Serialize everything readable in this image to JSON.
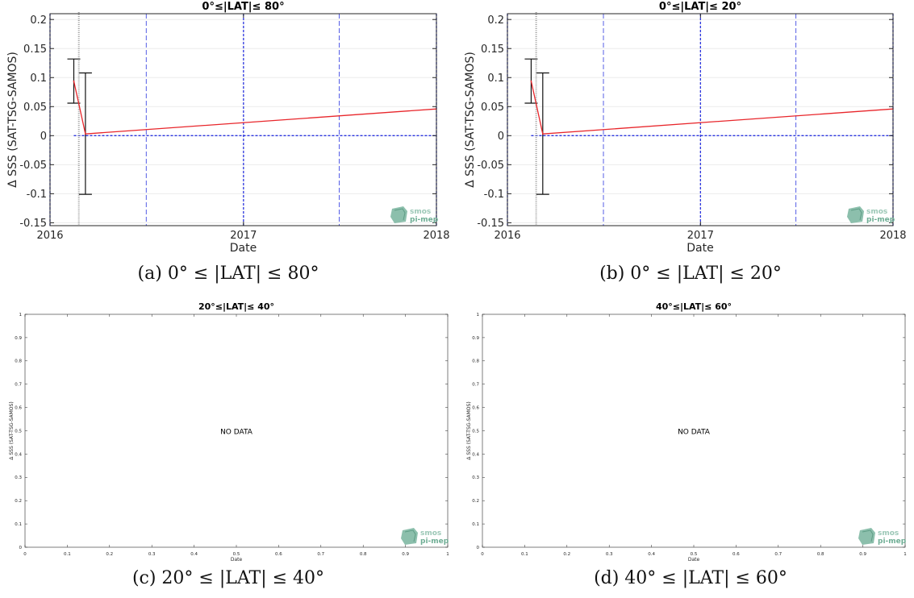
{
  "chart_data": [
    {
      "type": "line",
      "title": "0°≤|LAT|≤ 80°",
      "caption": "(a) 0° ≤ |LAT| ≤ 80°",
      "xlabel": "Date",
      "ylabel": "Δ SSS (SAT-TSG-SAMOS)",
      "x_ticks": [
        "2016",
        "2017",
        "2018"
      ],
      "y_ticks": [
        "-0.15",
        "-0.1",
        "-0.05",
        "0",
        "0.05",
        "0.1",
        "0.15",
        "0.2"
      ],
      "xlim": [
        "2016-01-01",
        "2018-01-01"
      ],
      "ylim": [
        -0.155,
        0.21
      ],
      "grid": true,
      "series": [
        {
          "color": "#e8262b",
          "x": [
            "2016-02-15",
            "2016-03-08",
            "2018-01-01"
          ],
          "y": [
            0.094,
            0.003,
            0.046
          ]
        }
      ],
      "error_bars": [
        {
          "x": "2016-02-15",
          "low": 0.056,
          "high": 0.132
        },
        {
          "x": "2016-03-08",
          "low": -0.101,
          "high": 0.108
        }
      ],
      "reference_lines": [
        {
          "orientation": "horizontal",
          "y": 0,
          "color": "#2b35e0"
        },
        {
          "orientation": "vertical",
          "x": "2016-01-01",
          "color": "#2b35e0"
        },
        {
          "orientation": "vertical",
          "x": "2016-07-01",
          "color": "#2b35e0"
        },
        {
          "orientation": "vertical",
          "x": "2017-01-01",
          "color": "#2b35e0"
        },
        {
          "orientation": "vertical",
          "x": "2017-07-01",
          "color": "#2b35e0"
        },
        {
          "orientation": "vertical",
          "x": "2018-01-01",
          "color": "#2b35e0"
        }
      ],
      "logo": {
        "line1": "smos",
        "line2": "pi-mep"
      }
    },
    {
      "type": "line",
      "title": "0°≤|LAT|≤ 20°",
      "caption": "(b) 0° ≤ |LAT| ≤ 20°",
      "xlabel": "Date",
      "ylabel": "Δ SSS (SAT-TSG-SAMOS)",
      "x_ticks": [
        "2016",
        "2017",
        "2018"
      ],
      "y_ticks": [
        "-0.15",
        "-0.1",
        "-0.05",
        "0",
        "0.05",
        "0.1",
        "0.15",
        "0.2"
      ],
      "xlim": [
        "2016-01-01",
        "2018-01-01"
      ],
      "ylim": [
        -0.155,
        0.21
      ],
      "grid": true,
      "series": [
        {
          "color": "#e8262b",
          "x": [
            "2016-02-15",
            "2016-03-08",
            "2018-01-01"
          ],
          "y": [
            0.094,
            0.003,
            0.046
          ]
        }
      ],
      "error_bars": [
        {
          "x": "2016-02-15",
          "low": 0.056,
          "high": 0.132
        },
        {
          "x": "2016-03-08",
          "low": -0.101,
          "high": 0.108
        }
      ],
      "reference_lines": [
        {
          "orientation": "horizontal",
          "y": 0,
          "color": "#2b35e0"
        },
        {
          "orientation": "vertical",
          "x": "2016-01-01",
          "color": "#2b35e0"
        },
        {
          "orientation": "vertical",
          "x": "2016-07-01",
          "color": "#2b35e0"
        },
        {
          "orientation": "vertical",
          "x": "2017-01-01",
          "color": "#2b35e0"
        },
        {
          "orientation": "vertical",
          "x": "2017-07-01",
          "color": "#2b35e0"
        },
        {
          "orientation": "vertical",
          "x": "2018-01-01",
          "color": "#2b35e0"
        }
      ],
      "logo": {
        "line1": "smos",
        "line2": "pi-mep"
      }
    },
    {
      "type": "line",
      "title": "20°≤|LAT|≤ 40°",
      "caption": "(c) 20° ≤ |LAT| ≤ 40°",
      "xlabel": "Date",
      "ylabel": "Δ SSS (SAT-TSG-SAMOS)",
      "x_ticks": [
        "0",
        "0.1",
        "0.2",
        "0.3",
        "0.4",
        "0.5",
        "0.6",
        "0.7",
        "0.8",
        "0.9",
        "1"
      ],
      "y_ticks": [
        "0",
        "0.1",
        "0.2",
        "0.3",
        "0.4",
        "0.5",
        "0.6",
        "0.7",
        "0.8",
        "0.9",
        "1"
      ],
      "xlim": [
        0,
        1
      ],
      "ylim": [
        0,
        1
      ],
      "grid": false,
      "series": [],
      "annotation": "NO DATA",
      "logo": {
        "line1": "smos",
        "line2": "pi-mep"
      }
    },
    {
      "type": "line",
      "title": "40°≤|LAT|≤ 60°",
      "caption": "(d) 40° ≤ |LAT| ≤ 60°",
      "xlabel": "Date",
      "ylabel": "Δ SSS (SAT-TSG-SAMOS)",
      "x_ticks": [
        "0",
        "0.1",
        "0.2",
        "0.3",
        "0.4",
        "0.5",
        "0.6",
        "0.7",
        "0.8",
        "0.9",
        "1"
      ],
      "y_ticks": [
        "0",
        "0.1",
        "0.2",
        "0.3",
        "0.4",
        "0.5",
        "0.6",
        "0.7",
        "0.8",
        "0.9",
        "1"
      ],
      "xlim": [
        0,
        1
      ],
      "ylim": [
        0,
        1
      ],
      "grid": false,
      "series": [],
      "annotation": "NO DATA",
      "logo": {
        "line1": "smos",
        "line2": "pi-mep"
      }
    }
  ]
}
